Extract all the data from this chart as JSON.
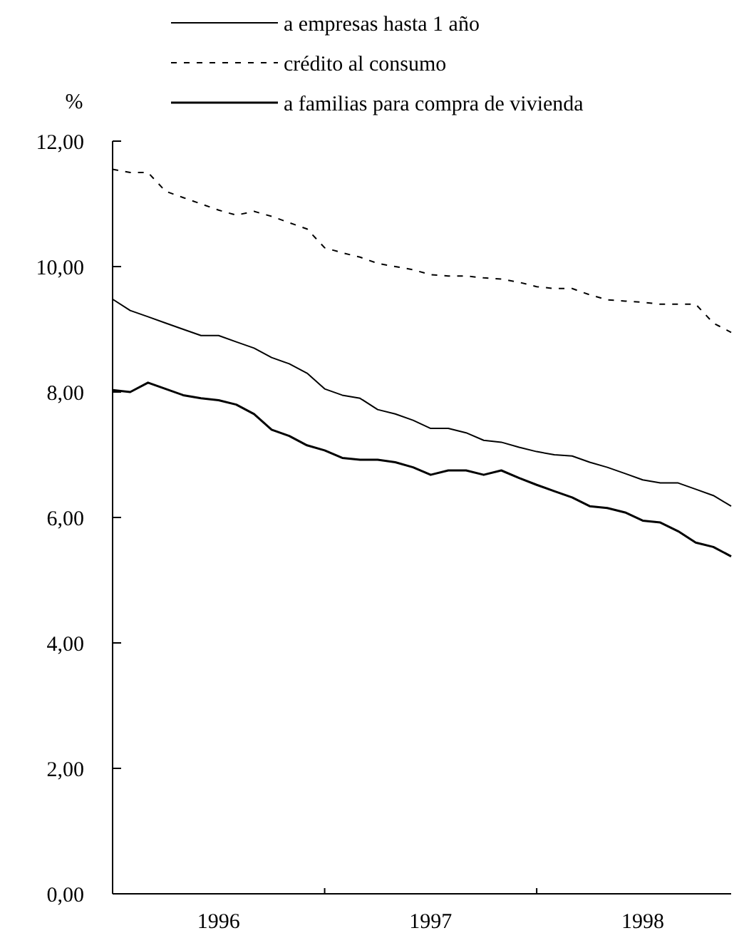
{
  "chart_data": {
    "type": "line",
    "ylabel": "%",
    "legend": "top",
    "grid": false,
    "marker": "none",
    "line_style": "solid",
    "xlim": [
      1996,
      1998.917
    ],
    "xticks": [
      {
        "value": 1996.5,
        "label": "1996"
      },
      {
        "value": 1997,
        "label": null
      },
      {
        "value": 1997.5,
        "label": "1997"
      },
      {
        "value": 1998,
        "label": null
      },
      {
        "value": 1998.5,
        "label": "1998"
      }
    ],
    "ylim": [
      0,
      12
    ],
    "yticks": [
      {
        "value": 0,
        "label": "0,00"
      },
      {
        "value": 2,
        "label": "2,00"
      },
      {
        "value": 4,
        "label": "4,00"
      },
      {
        "value": 6,
        "label": "6,00"
      },
      {
        "value": 8,
        "label": "8,00"
      },
      {
        "value": 10,
        "label": "10,00"
      },
      {
        "value": 12,
        "label": "12,00"
      }
    ],
    "x": [
      1996,
      1996.083,
      1996.167,
      1996.25,
      1996.333,
      1996.417,
      1996.5,
      1996.583,
      1996.667,
      1996.75,
      1996.833,
      1996.917,
      1997,
      1997.083,
      1997.167,
      1997.25,
      1997.333,
      1997.417,
      1997.5,
      1997.583,
      1997.667,
      1997.75,
      1997.833,
      1997.917,
      1998,
      1998.083,
      1998.167,
      1998.25,
      1998.333,
      1998.417,
      1998.5,
      1998.583,
      1998.667,
      1998.75,
      1998.833,
      1998.917
    ],
    "series": [
      {
        "name": "a empresas hasta 1 año",
        "color": "#000000",
        "values": [
          9.48,
          9.3,
          9.2,
          9.1,
          9.0,
          8.9,
          8.9,
          8.8,
          8.7,
          8.55,
          8.45,
          8.3,
          8.05,
          7.95,
          7.9,
          7.72,
          7.65,
          7.55,
          7.42,
          7.42,
          7.35,
          7.23,
          7.2,
          7.12,
          7.05,
          7.0,
          6.98,
          6.88,
          6.8,
          6.7,
          6.6,
          6.55,
          6.55,
          6.45,
          6.35,
          6.18
        ]
      },
      {
        "name": "crédito al consumo",
        "color": "#000000",
        "line_style": "dashed",
        "values": [
          11.55,
          11.5,
          11.5,
          11.2,
          11.1,
          11.0,
          10.9,
          10.82,
          10.88,
          10.8,
          10.7,
          10.6,
          10.3,
          10.22,
          10.15,
          10.05,
          10.0,
          9.95,
          9.87,
          9.85,
          9.85,
          9.82,
          9.8,
          9.75,
          9.68,
          9.65,
          9.65,
          9.55,
          9.47,
          9.45,
          9.43,
          9.4,
          9.4,
          9.4,
          9.1,
          8.95
        ]
      },
      {
        "name": "a familias para compra de vivienda",
        "color": "#000000",
        "values": [
          8.03,
          8.0,
          8.15,
          8.05,
          7.95,
          7.9,
          7.87,
          7.8,
          7.65,
          7.4,
          7.3,
          7.15,
          7.07,
          6.95,
          6.92,
          6.92,
          6.88,
          6.8,
          6.68,
          6.75,
          6.75,
          6.68,
          6.75,
          6.63,
          6.52,
          6.42,
          6.32,
          6.18,
          6.15,
          6.08,
          5.95,
          5.92,
          5.78,
          5.6,
          5.53,
          5.38
        ]
      }
    ]
  }
}
